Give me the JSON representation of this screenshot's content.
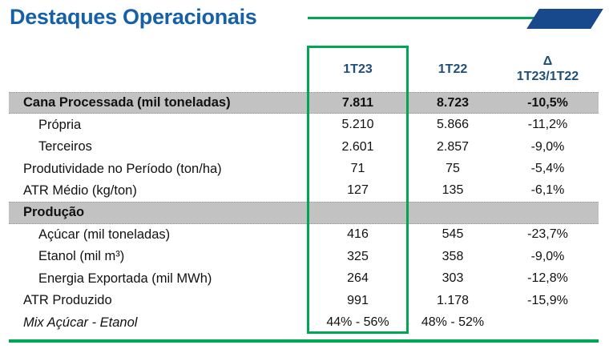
{
  "page": {
    "title": "Destaques Operacionais"
  },
  "colors": {
    "title_blue": "#1560A6",
    "header_blue": "#1F4E79",
    "accent_green": "#00A651",
    "section_gray": "#C2C2C2",
    "shape_navy": "#17498C"
  },
  "table": {
    "columns": {
      "col_1t23": "1T23",
      "col_1t22": "1T22",
      "delta_symbol": "Δ",
      "delta_label": "1T23/1T22"
    },
    "rows": [
      {
        "label": "Cana Processada (mil toneladas)",
        "type": "section",
        "v1": "7.811",
        "v2": "8.723",
        "v3": "-10,5%"
      },
      {
        "label": "Própria",
        "type": "indent",
        "v1": "5.210",
        "v2": "5.866",
        "v3": "-11,2%"
      },
      {
        "label": "Terceiros",
        "type": "indent",
        "v1": "2.601",
        "v2": "2.857",
        "v3": "-9,0%"
      },
      {
        "label": "Produtividade no Período (ton/ha)",
        "type": "normal",
        "v1": "71",
        "v2": "75",
        "v3": "-5,4%"
      },
      {
        "label": "ATR Médio (kg/ton)",
        "type": "normal",
        "v1": "127",
        "v2": "135",
        "v3": "-6,1%"
      },
      {
        "label": "Produção",
        "type": "section",
        "v1": "",
        "v2": "",
        "v3": ""
      },
      {
        "label": "Açúcar (mil toneladas)",
        "type": "indent",
        "v1": "416",
        "v2": "545",
        "v3": "-23,7%"
      },
      {
        "label": "Etanol (mil m³)",
        "type": "indent",
        "v1": "325",
        "v2": "358",
        "v3": "-9,0%"
      },
      {
        "label": "Energia Exportada (mil MWh)",
        "type": "indent",
        "v1": "264",
        "v2": "303",
        "v3": "-12,8%"
      },
      {
        "label": "ATR Produzido",
        "type": "normal",
        "v1": "991",
        "v2": "1.178",
        "v3": "-15,9%"
      },
      {
        "label": "Mix Açúcar - Etanol",
        "type": "mix",
        "v1": "44% - 56%",
        "v2": "48% - 52%",
        "v3": ""
      }
    ]
  }
}
